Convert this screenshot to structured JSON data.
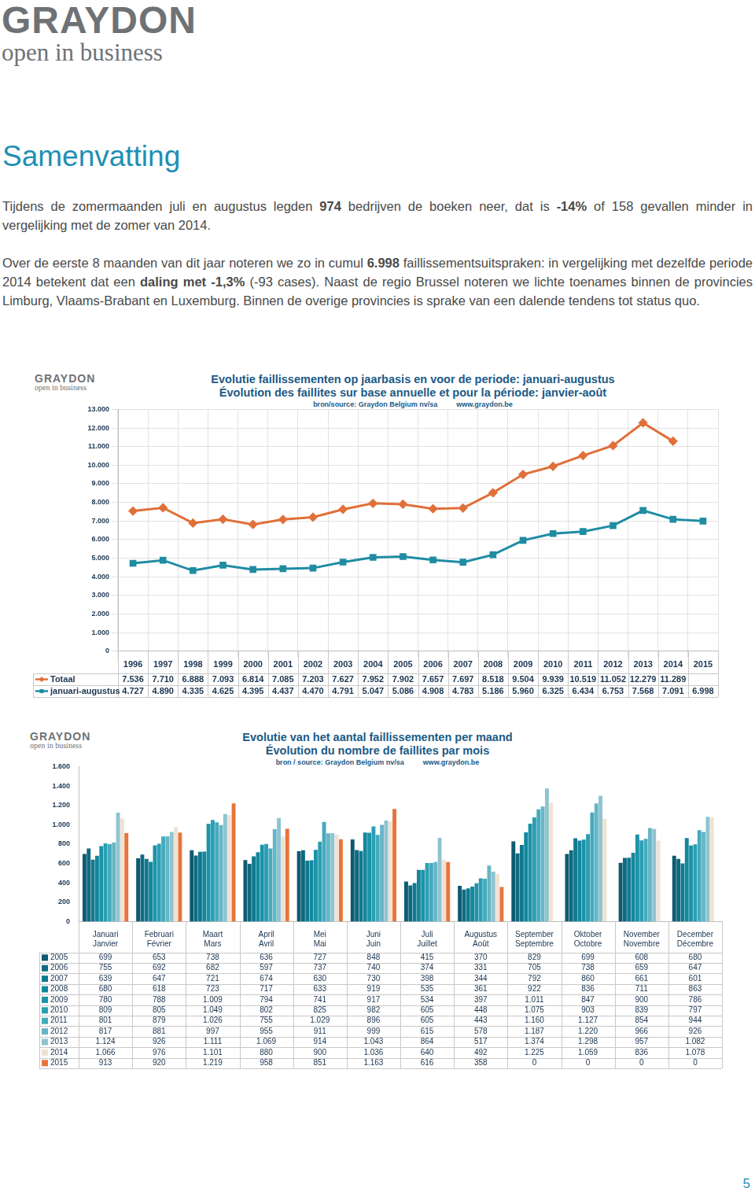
{
  "logo": {
    "name": "GRAYDON",
    "tagline": "open in business"
  },
  "heading": "Samenvatting",
  "paragraphs": [
    [
      {
        "text": "Tijdens de zomermaanden juli en augustus legden "
      },
      {
        "text": "974",
        "bold": true
      },
      {
        "text": " bedrijven de boeken neer, dat is "
      },
      {
        "text": "-14%",
        "bold": true
      },
      {
        "text": " of 158 gevallen minder in vergelijking met de zomer van 2014."
      }
    ],
    [
      {
        "text": "Over de eerste 8 maanden van dit jaar noteren we zo in cumul "
      },
      {
        "text": "6.998",
        "bold": true
      },
      {
        "text": " faillissementsuitspraken: in vergelijking met dezelfde periode 2014 betekent dat een "
      },
      {
        "text": "daling met -1,3%",
        "bold": true
      },
      {
        "text": " (-93 cases). Naast de regio Brussel noteren we lichte toenames binnen de provincies Limburg, Vlaams-Brabant en Luxemburg. Binnen de overige provincies is sprake van een dalende tendens tot status quo."
      }
    ]
  ],
  "chart_data": [
    {
      "type": "line",
      "title": "Evolutie faillissementen op jaarbasis en voor de periode: januari-augustus",
      "subtitle": "Évolution des faillites sur base annuelle et pour la période: janvier-août",
      "annotations": [
        "bron/source: Graydon Belgium nv/sa",
        "www.graydon.be"
      ],
      "categories": [
        "1996",
        "1997",
        "1998",
        "1999",
        "2000",
        "2001",
        "2002",
        "2003",
        "2004",
        "2005",
        "2006",
        "2007",
        "2008",
        "2009",
        "2010",
        "2011",
        "2012",
        "2013",
        "2014",
        "2015"
      ],
      "series": [
        {
          "name": "Totaal",
          "color": "#e0703a",
          "marker": "diamond",
          "values": [
            7536,
            7710,
            6888,
            7093,
            6814,
            7085,
            7203,
            7627,
            7952,
            7902,
            7657,
            7697,
            8518,
            9504,
            9939,
            10519,
            11052,
            12279,
            11289,
            null
          ],
          "value_labels": [
            "7.536",
            "7.710",
            "6.888",
            "7.093",
            "6.814",
            "7.085",
            "7.203",
            "7.627",
            "7.952",
            "7.902",
            "7.657",
            "7.697",
            "8.518",
            "9.504",
            "9.939",
            "10.519",
            "11.052",
            "12.279",
            "11.289",
            null
          ]
        },
        {
          "name": "januari-augustus",
          "color": "#1f8ca3",
          "marker": "square",
          "values": [
            4727,
            4890,
            4335,
            4625,
            4395,
            4437,
            4470,
            4791,
            5047,
            5086,
            4908,
            4783,
            5186,
            5960,
            6325,
            6434,
            6753,
            7568,
            7091,
            6998
          ],
          "value_labels": [
            "4.727",
            "4.890",
            "4.335",
            "4.625",
            "4.395",
            "4.437",
            "4.470",
            "4.791",
            "5.047",
            "5.086",
            "4.908",
            "4.783",
            "5.186",
            "5.960",
            "6.325",
            "6.434",
            "6.753",
            "7.568",
            "7.091",
            "6.998"
          ]
        }
      ],
      "ylim": [
        0,
        13000
      ],
      "yticks": [
        0,
        {
          "value": 1000,
          "label": "1.000"
        },
        {
          "value": 2000,
          "label": "2.000"
        },
        {
          "value": 3000,
          "label": "3.000"
        },
        {
          "value": 4000,
          "label": "4.000"
        },
        {
          "value": 5000,
          "label": "5.000"
        },
        {
          "value": 6000,
          "label": "6.000"
        },
        {
          "value": 7000,
          "label": "7.000"
        },
        {
          "value": 8000,
          "label": "8.000"
        },
        {
          "value": 9000,
          "label": "9.000"
        },
        {
          "value": 10000,
          "label": "10.000"
        },
        {
          "value": 11000,
          "label": "11.000"
        },
        {
          "value": 12000,
          "label": "12.000"
        },
        {
          "value": 13000,
          "label": "13.000"
        }
      ],
      "grid": true
    },
    {
      "type": "bar",
      "title": "Evolutie van het aantal faillissementen per maand",
      "subtitle": "Évolution du nombre de faillites par mois",
      "annotations": [
        "bron / source: Graydon Belgium nv/sa",
        "www.graydon.be"
      ],
      "categories": [
        [
          "Januari",
          "Janvier"
        ],
        [
          "Februari",
          "Février"
        ],
        [
          "Maart",
          "Mars"
        ],
        [
          "April",
          "Avril"
        ],
        [
          "Mei",
          "Mai"
        ],
        [
          "Juni",
          "Juin"
        ],
        [
          "Juli",
          "Juillet"
        ],
        [
          "Augustus",
          "Août"
        ],
        [
          "September",
          "Septembre"
        ],
        [
          "Oktober",
          "Octobre"
        ],
        [
          "November",
          "Novembre"
        ],
        [
          "December",
          "Décembre"
        ]
      ],
      "series": [
        {
          "name": "2005",
          "color": "#0e5a70",
          "values": [
            699,
            653,
            738,
            636,
            727,
            848,
            415,
            370,
            829,
            699,
            608,
            680
          ]
        },
        {
          "name": "2006",
          "color": "#0f6a80",
          "values": [
            755,
            692,
            682,
            597,
            737,
            740,
            374,
            331,
            705,
            738,
            659,
            647
          ]
        },
        {
          "name": "2007",
          "color": "#11798f",
          "values": [
            639,
            647,
            721,
            674,
            630,
            730,
            398,
            344,
            792,
            860,
            661,
            601
          ]
        },
        {
          "name": "2008",
          "color": "#13879c",
          "values": [
            680,
            618,
            723,
            717,
            633,
            919,
            535,
            361,
            922,
            836,
            711,
            863
          ]
        },
        {
          "name": "2009",
          "color": "#1b93a8",
          "values": [
            780,
            788,
            1009,
            794,
            741,
            917,
            534,
            397,
            1011,
            847,
            900,
            786
          ],
          "value_labels": [
            "780",
            "788",
            "1.009",
            "794",
            "741",
            "917",
            "534",
            "397",
            "1.011",
            "847",
            "900",
            "786"
          ]
        },
        {
          "name": "2010",
          "color": "#2a9fb3",
          "values": [
            809,
            805,
            1049,
            802,
            825,
            982,
            605,
            448,
            1075,
            903,
            839,
            797
          ],
          "value_labels": [
            "809",
            "805",
            "1.049",
            "802",
            "825",
            "982",
            "605",
            "448",
            "1.075",
            "903",
            "839",
            "797"
          ]
        },
        {
          "name": "2011",
          "color": "#46aabd",
          "values": [
            801,
            879,
            1026,
            755,
            1029,
            896,
            605,
            443,
            1160,
            1127,
            854,
            944
          ],
          "value_labels": [
            "801",
            "879",
            "1.026",
            "755",
            "1.029",
            "896",
            "605",
            "443",
            "1.160",
            "1.127",
            "854",
            "944"
          ]
        },
        {
          "name": "2012",
          "color": "#66b6c6",
          "values": [
            817,
            881,
            997,
            955,
            911,
            999,
            615,
            578,
            1187,
            1220,
            966,
            926
          ],
          "value_labels": [
            "817",
            "881",
            "997",
            "955",
            "911",
            "999",
            "615",
            "578",
            "1.187",
            "1.220",
            "966",
            "926"
          ]
        },
        {
          "name": "2013",
          "color": "#8ec4d0",
          "values": [
            1124,
            926,
            1111,
            1069,
            914,
            1043,
            864,
            517,
            1374,
            1298,
            957,
            1082
          ],
          "value_labels": [
            "1.124",
            "926",
            "1.111",
            "1.069",
            "914",
            "1.043",
            "864",
            "517",
            "1.374",
            "1.298",
            "957",
            "1.082"
          ]
        },
        {
          "name": "2014",
          "color": "#f0e2d2",
          "values": [
            1066,
            976,
            1101,
            880,
            900,
            1036,
            640,
            492,
            1225,
            1059,
            836,
            1078
          ],
          "value_labels": [
            "1.066",
            "976",
            "1.101",
            "880",
            "900",
            "1.036",
            "640",
            "492",
            "1.225",
            "1.059",
            "836",
            "1.078"
          ]
        },
        {
          "name": "2015",
          "color": "#e8743b",
          "values": [
            913,
            920,
            1219,
            958,
            851,
            1163,
            616,
            358,
            0,
            0,
            0,
            0
          ],
          "value_labels": [
            "913",
            "920",
            "1.219",
            "958",
            "851",
            "1.163",
            "616",
            "358",
            "0",
            "0",
            "0",
            "0"
          ]
        }
      ],
      "ylim": [
        0,
        1600
      ],
      "yticks": [
        0,
        200,
        400,
        600,
        800,
        {
          "value": 1000,
          "label": "1.000"
        },
        {
          "value": 1200,
          "label": "1.200"
        },
        {
          "value": 1400,
          "label": "1.400"
        },
        {
          "value": 1600,
          "label": "1.600"
        }
      ],
      "grid": false
    }
  ],
  "page_number": 5
}
